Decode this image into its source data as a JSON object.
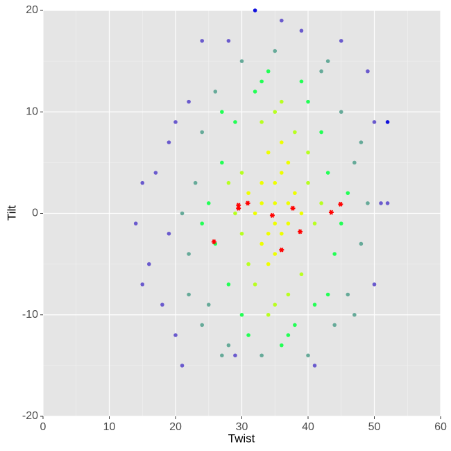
{
  "chart_data": {
    "type": "scatter",
    "x_label": "Twist",
    "y_label": "Tilt",
    "xlim": [
      0,
      60
    ],
    "ylim": [
      -20,
      20
    ],
    "xticks": [
      0,
      10,
      20,
      30,
      40,
      50,
      60
    ],
    "yticks": [
      -20,
      -10,
      0,
      10,
      20
    ],
    "grid": true,
    "minor_grid": true,
    "background": "#e5e5e5",
    "series": [
      {
        "color": "#6a5acd",
        "marker": "circle",
        "x": [
          14,
          15,
          16,
          17,
          18,
          19,
          20,
          21,
          22,
          24,
          19,
          50,
          51,
          52,
          50,
          49,
          45,
          39,
          36,
          28,
          29,
          41,
          15,
          20
        ],
        "y": [
          -1,
          3,
          -5,
          4,
          -9,
          7,
          9,
          -15,
          11,
          17,
          -2,
          9,
          1,
          1,
          -7,
          14,
          17,
          18,
          19,
          17,
          -14,
          -15,
          -7,
          -12
        ]
      },
      {
        "color": "#66aa99",
        "marker": "circle",
        "x": [
          23,
          47,
          22,
          48,
          25,
          45,
          26,
          44,
          30,
          40,
          21,
          49,
          24,
          46,
          28,
          42,
          35,
          33,
          48,
          22,
          27,
          43,
          47,
          24
        ],
        "y": [
          3,
          5,
          -4,
          -3,
          -9,
          10,
          12,
          -11,
          15,
          -14,
          0,
          1,
          8,
          -8,
          -13,
          14,
          16,
          -14,
          7,
          -8,
          -14,
          15,
          -10,
          -11
        ]
      },
      {
        "color": "#22ff55",
        "marker": "circle",
        "x": [
          27,
          43,
          26,
          44,
          32,
          38,
          29,
          41,
          30,
          40,
          25,
          45,
          33,
          37,
          28,
          42,
          34,
          36,
          46,
          24,
          31,
          39,
          43,
          27
        ],
        "y": [
          5,
          4,
          -3,
          -4,
          12,
          -11,
          9,
          -9,
          -10,
          11,
          1,
          -1,
          13,
          -12,
          -7,
          8,
          14,
          -13,
          2,
          -1,
          -12,
          13,
          -8,
          10
        ]
      },
      {
        "color": "#b8ff20",
        "marker": "circle",
        "x": [
          30,
          40,
          31,
          39,
          33,
          37,
          29,
          41,
          35,
          35,
          30,
          40,
          32,
          38,
          28,
          42,
          34,
          36
        ],
        "y": [
          4,
          3,
          -5,
          -6,
          9,
          -8,
          0,
          -1,
          10,
          -9,
          -2,
          6,
          -7,
          8,
          3,
          1,
          -10,
          11
        ]
      },
      {
        "color": "#eeff00",
        "marker": "circle",
        "x": [
          35,
          33,
          37,
          34,
          36,
          32,
          38,
          35,
          33,
          37,
          34,
          36,
          31,
          39,
          35,
          33,
          37,
          34,
          36,
          35
        ],
        "y": [
          1,
          3,
          -1,
          -2,
          4,
          0,
          2,
          -4,
          -3,
          5,
          6,
          -2,
          2,
          0,
          3,
          1,
          1,
          -5,
          7,
          -1
        ]
      },
      {
        "color": "#1111dd",
        "marker": "circle",
        "x": [
          52,
          32
        ],
        "y": [
          9,
          20
        ]
      },
      {
        "color": "#ff0000",
        "marker": "asterisk",
        "x": [
          25.8,
          29.5,
          29.5,
          30.9,
          34.6,
          36,
          37.7,
          38.8,
          43.5,
          44.9
        ],
        "y": [
          -2.8,
          0.8,
          0.5,
          1,
          -0.2,
          -3.6,
          0.5,
          -1.8,
          0.1,
          0.9
        ]
      }
    ]
  }
}
